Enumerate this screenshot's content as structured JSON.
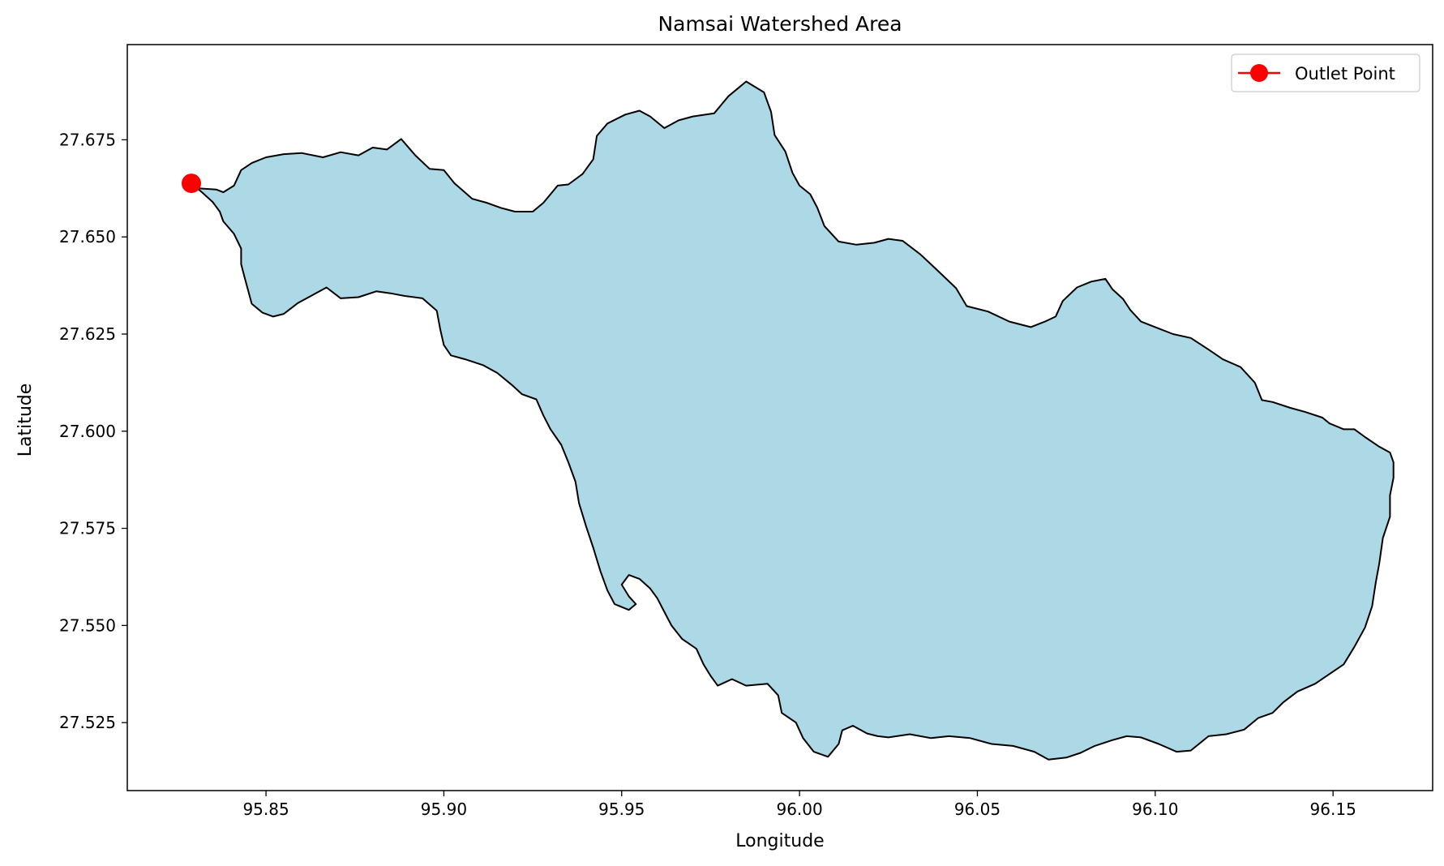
{
  "chart_data": {
    "type": "map",
    "title": "Namsai Watershed Area",
    "xlabel": "Longitude",
    "ylabel": "Latitude",
    "xlim": [
      95.811,
      96.178
    ],
    "ylim": [
      27.5075,
      27.6995
    ],
    "xticks": [
      95.85,
      95.9,
      95.95,
      96.0,
      96.05,
      96.1,
      96.15
    ],
    "xtick_labels": [
      "95.85",
      "95.90",
      "95.95",
      "96.00",
      "96.05",
      "96.10",
      "96.15"
    ],
    "yticks": [
      27.525,
      27.55,
      27.575,
      27.6,
      27.625,
      27.65,
      27.675
    ],
    "ytick_labels": [
      "27.525",
      "27.550",
      "27.575",
      "27.600",
      "27.625",
      "27.650",
      "27.675"
    ],
    "grid": false,
    "legend": {
      "position": "top-right",
      "entries": [
        "Outlet Point"
      ]
    },
    "colors": {
      "watershed_fill": "#add8e6",
      "watershed_edge": "#000000",
      "outlet": "#ff0000"
    },
    "watershed_boundary": [
      [
        95.829,
        27.6638
      ],
      [
        95.831,
        27.6625
      ],
      [
        95.836,
        27.6622
      ],
      [
        95.838,
        27.6615
      ],
      [
        95.841,
        27.6632
      ],
      [
        95.843,
        27.6672
      ],
      [
        95.846,
        27.669
      ],
      [
        95.85,
        27.6705
      ],
      [
        95.855,
        27.6713
      ],
      [
        95.86,
        27.6716
      ],
      [
        95.866,
        27.6705
      ],
      [
        95.871,
        27.6718
      ],
      [
        95.876,
        27.671
      ],
      [
        95.88,
        27.673
      ],
      [
        95.884,
        27.6725
      ],
      [
        95.888,
        27.6752
      ],
      [
        95.892,
        27.671
      ],
      [
        95.896,
        27.6675
      ],
      [
        95.9,
        27.6672
      ],
      [
        95.903,
        27.6638
      ],
      [
        95.905,
        27.6622
      ],
      [
        95.908,
        27.6598
      ],
      [
        95.912,
        27.6588
      ],
      [
        95.916,
        27.6575
      ],
      [
        95.92,
        27.6565
      ],
      [
        95.925,
        27.6565
      ],
      [
        95.928,
        27.6588
      ],
      [
        95.932,
        27.6632
      ],
      [
        95.935,
        27.6635
      ],
      [
        95.939,
        27.6662
      ],
      [
        95.942,
        27.67
      ],
      [
        95.943,
        27.676
      ],
      [
        95.946,
        27.6792
      ],
      [
        95.951,
        27.6815
      ],
      [
        95.955,
        27.6825
      ],
      [
        95.958,
        27.681
      ],
      [
        95.962,
        27.678
      ],
      [
        95.966,
        27.68
      ],
      [
        95.97,
        27.681
      ],
      [
        95.976,
        27.6818
      ],
      [
        95.98,
        27.6862
      ],
      [
        95.985,
        27.69
      ],
      [
        95.99,
        27.6872
      ],
      [
        95.992,
        27.6822
      ],
      [
        95.993,
        27.6762
      ],
      [
        95.996,
        27.672
      ],
      [
        95.998,
        27.6665
      ],
      [
        96.0,
        27.6632
      ],
      [
        96.003,
        27.661
      ],
      [
        96.005,
        27.6575
      ],
      [
        96.007,
        27.6528
      ],
      [
        96.011,
        27.6488
      ],
      [
        96.016,
        27.648
      ],
      [
        96.021,
        27.6485
      ],
      [
        96.025,
        27.6495
      ],
      [
        96.029,
        27.649
      ],
      [
        96.034,
        27.6455
      ],
      [
        96.039,
        27.6412
      ],
      [
        96.044,
        27.6368
      ],
      [
        96.047,
        27.6322
      ],
      [
        96.053,
        27.6308
      ],
      [
        96.059,
        27.6282
      ],
      [
        96.065,
        27.6268
      ],
      [
        96.069,
        27.6282
      ],
      [
        96.072,
        27.6295
      ],
      [
        96.074,
        27.6335
      ],
      [
        96.078,
        27.637
      ],
      [
        96.082,
        27.6385
      ],
      [
        96.086,
        27.6392
      ],
      [
        96.088,
        27.6365
      ],
      [
        96.091,
        27.634
      ],
      [
        96.093,
        27.6312
      ],
      [
        96.096,
        27.6282
      ],
      [
        96.1,
        27.6268
      ],
      [
        96.105,
        27.625
      ],
      [
        96.11,
        27.624
      ],
      [
        96.115,
        27.621
      ],
      [
        96.119,
        27.6185
      ],
      [
        96.124,
        27.6165
      ],
      [
        96.128,
        27.6125
      ],
      [
        96.13,
        27.608
      ],
      [
        96.133,
        27.6075
      ],
      [
        96.138,
        27.606
      ],
      [
        96.142,
        27.605
      ],
      [
        96.147,
        27.6035
      ],
      [
        96.149,
        27.602
      ],
      [
        96.153,
        27.6005
      ],
      [
        96.156,
        27.6005
      ],
      [
        96.159,
        27.5985
      ],
      [
        96.163,
        27.596
      ],
      [
        96.166,
        27.5945
      ],
      [
        96.167,
        27.592
      ],
      [
        96.167,
        27.588
      ],
      [
        96.166,
        27.5835
      ],
      [
        96.166,
        27.578
      ],
      [
        96.164,
        27.5725
      ],
      [
        96.163,
        27.566
      ],
      [
        96.162,
        27.561
      ],
      [
        96.161,
        27.555
      ],
      [
        96.159,
        27.5495
      ],
      [
        96.156,
        27.5445
      ],
      [
        96.153,
        27.54
      ],
      [
        96.149,
        27.5375
      ],
      [
        96.145,
        27.535
      ],
      [
        96.14,
        27.533
      ],
      [
        96.136,
        27.5302
      ],
      [
        96.133,
        27.5275
      ],
      [
        96.129,
        27.5262
      ],
      [
        96.125,
        27.5232
      ],
      [
        96.12,
        27.522
      ],
      [
        96.115,
        27.5215
      ],
      [
        96.11,
        27.5178
      ],
      [
        96.106,
        27.5175
      ],
      [
        96.101,
        27.5195
      ],
      [
        96.096,
        27.5212
      ],
      [
        96.092,
        27.5215
      ],
      [
        96.088,
        27.5205
      ],
      [
        96.083,
        27.519
      ],
      [
        96.079,
        27.5172
      ],
      [
        96.075,
        27.516
      ],
      [
        96.07,
        27.5155
      ],
      [
        96.066,
        27.5175
      ],
      [
        96.06,
        27.519
      ],
      [
        96.054,
        27.5195
      ],
      [
        96.048,
        27.521
      ],
      [
        96.042,
        27.5215
      ],
      [
        96.037,
        27.521
      ],
      [
        96.031,
        27.522
      ],
      [
        96.025,
        27.5212
      ],
      [
        96.022,
        27.5215
      ],
      [
        96.019,
        27.5222
      ],
      [
        96.015,
        27.5242
      ],
      [
        96.012,
        27.523
      ],
      [
        96.011,
        27.5195
      ],
      [
        96.008,
        27.5162
      ],
      [
        96.004,
        27.5175
      ],
      [
        96.001,
        27.521
      ],
      [
        95.999,
        27.525
      ],
      [
        95.995,
        27.5275
      ],
      [
        95.994,
        27.532
      ],
      [
        95.991,
        27.535
      ],
      [
        95.985,
        27.5345
      ],
      [
        95.981,
        27.5362
      ],
      [
        95.977,
        27.5345
      ],
      [
        95.975,
        27.537
      ],
      [
        95.973,
        27.54
      ],
      [
        95.971,
        27.544
      ],
      [
        95.967,
        27.5465
      ],
      [
        95.964,
        27.55
      ],
      [
        95.962,
        27.5535
      ],
      [
        95.96,
        27.557
      ],
      [
        95.958,
        27.5595
      ],
      [
        95.955,
        27.562
      ],
      [
        95.952,
        27.563
      ],
      [
        95.95,
        27.5605
      ],
      [
        95.952,
        27.5575
      ],
      [
        95.954,
        27.5555
      ],
      [
        95.952,
        27.554
      ],
      [
        95.948,
        27.5555
      ],
      [
        95.946,
        27.559
      ],
      [
        95.944,
        27.564
      ],
      [
        95.942,
        27.57
      ],
      [
        95.94,
        27.5755
      ],
      [
        95.938,
        27.5815
      ],
      [
        95.937,
        27.587
      ],
      [
        95.935,
        27.592
      ],
      [
        95.933,
        27.5965
      ],
      [
        95.93,
        27.6005
      ],
      [
        95.928,
        27.604
      ],
      [
        95.926,
        27.6082
      ],
      [
        95.922,
        27.6095
      ],
      [
        95.919,
        27.612
      ],
      [
        95.915,
        27.615
      ],
      [
        95.911,
        27.617
      ],
      [
        95.906,
        27.6185
      ],
      [
        95.902,
        27.6195
      ],
      [
        95.9,
        27.6222
      ],
      [
        95.899,
        27.6262
      ],
      [
        95.898,
        27.631
      ],
      [
        95.894,
        27.6342
      ],
      [
        95.889,
        27.6348
      ],
      [
        95.885,
        27.6355
      ],
      [
        95.881,
        27.636
      ],
      [
        95.876,
        27.6345
      ],
      [
        95.871,
        27.6342
      ],
      [
        95.867,
        27.637
      ],
      [
        95.862,
        27.6345
      ],
      [
        95.859,
        27.633
      ],
      [
        95.855,
        27.6302
      ],
      [
        95.852,
        27.6295
      ],
      [
        95.849,
        27.6305
      ],
      [
        95.846,
        27.6328
      ],
      [
        95.844,
        27.6395
      ],
      [
        95.843,
        27.643
      ],
      [
        95.843,
        27.647
      ],
      [
        95.841,
        27.6508
      ],
      [
        95.838,
        27.654
      ],
      [
        95.837,
        27.6565
      ],
      [
        95.835,
        27.659
      ],
      [
        95.832,
        27.6615
      ]
    ],
    "outlet": {
      "name": "Outlet Point",
      "x": 95.829,
      "y": 27.6638
    }
  }
}
